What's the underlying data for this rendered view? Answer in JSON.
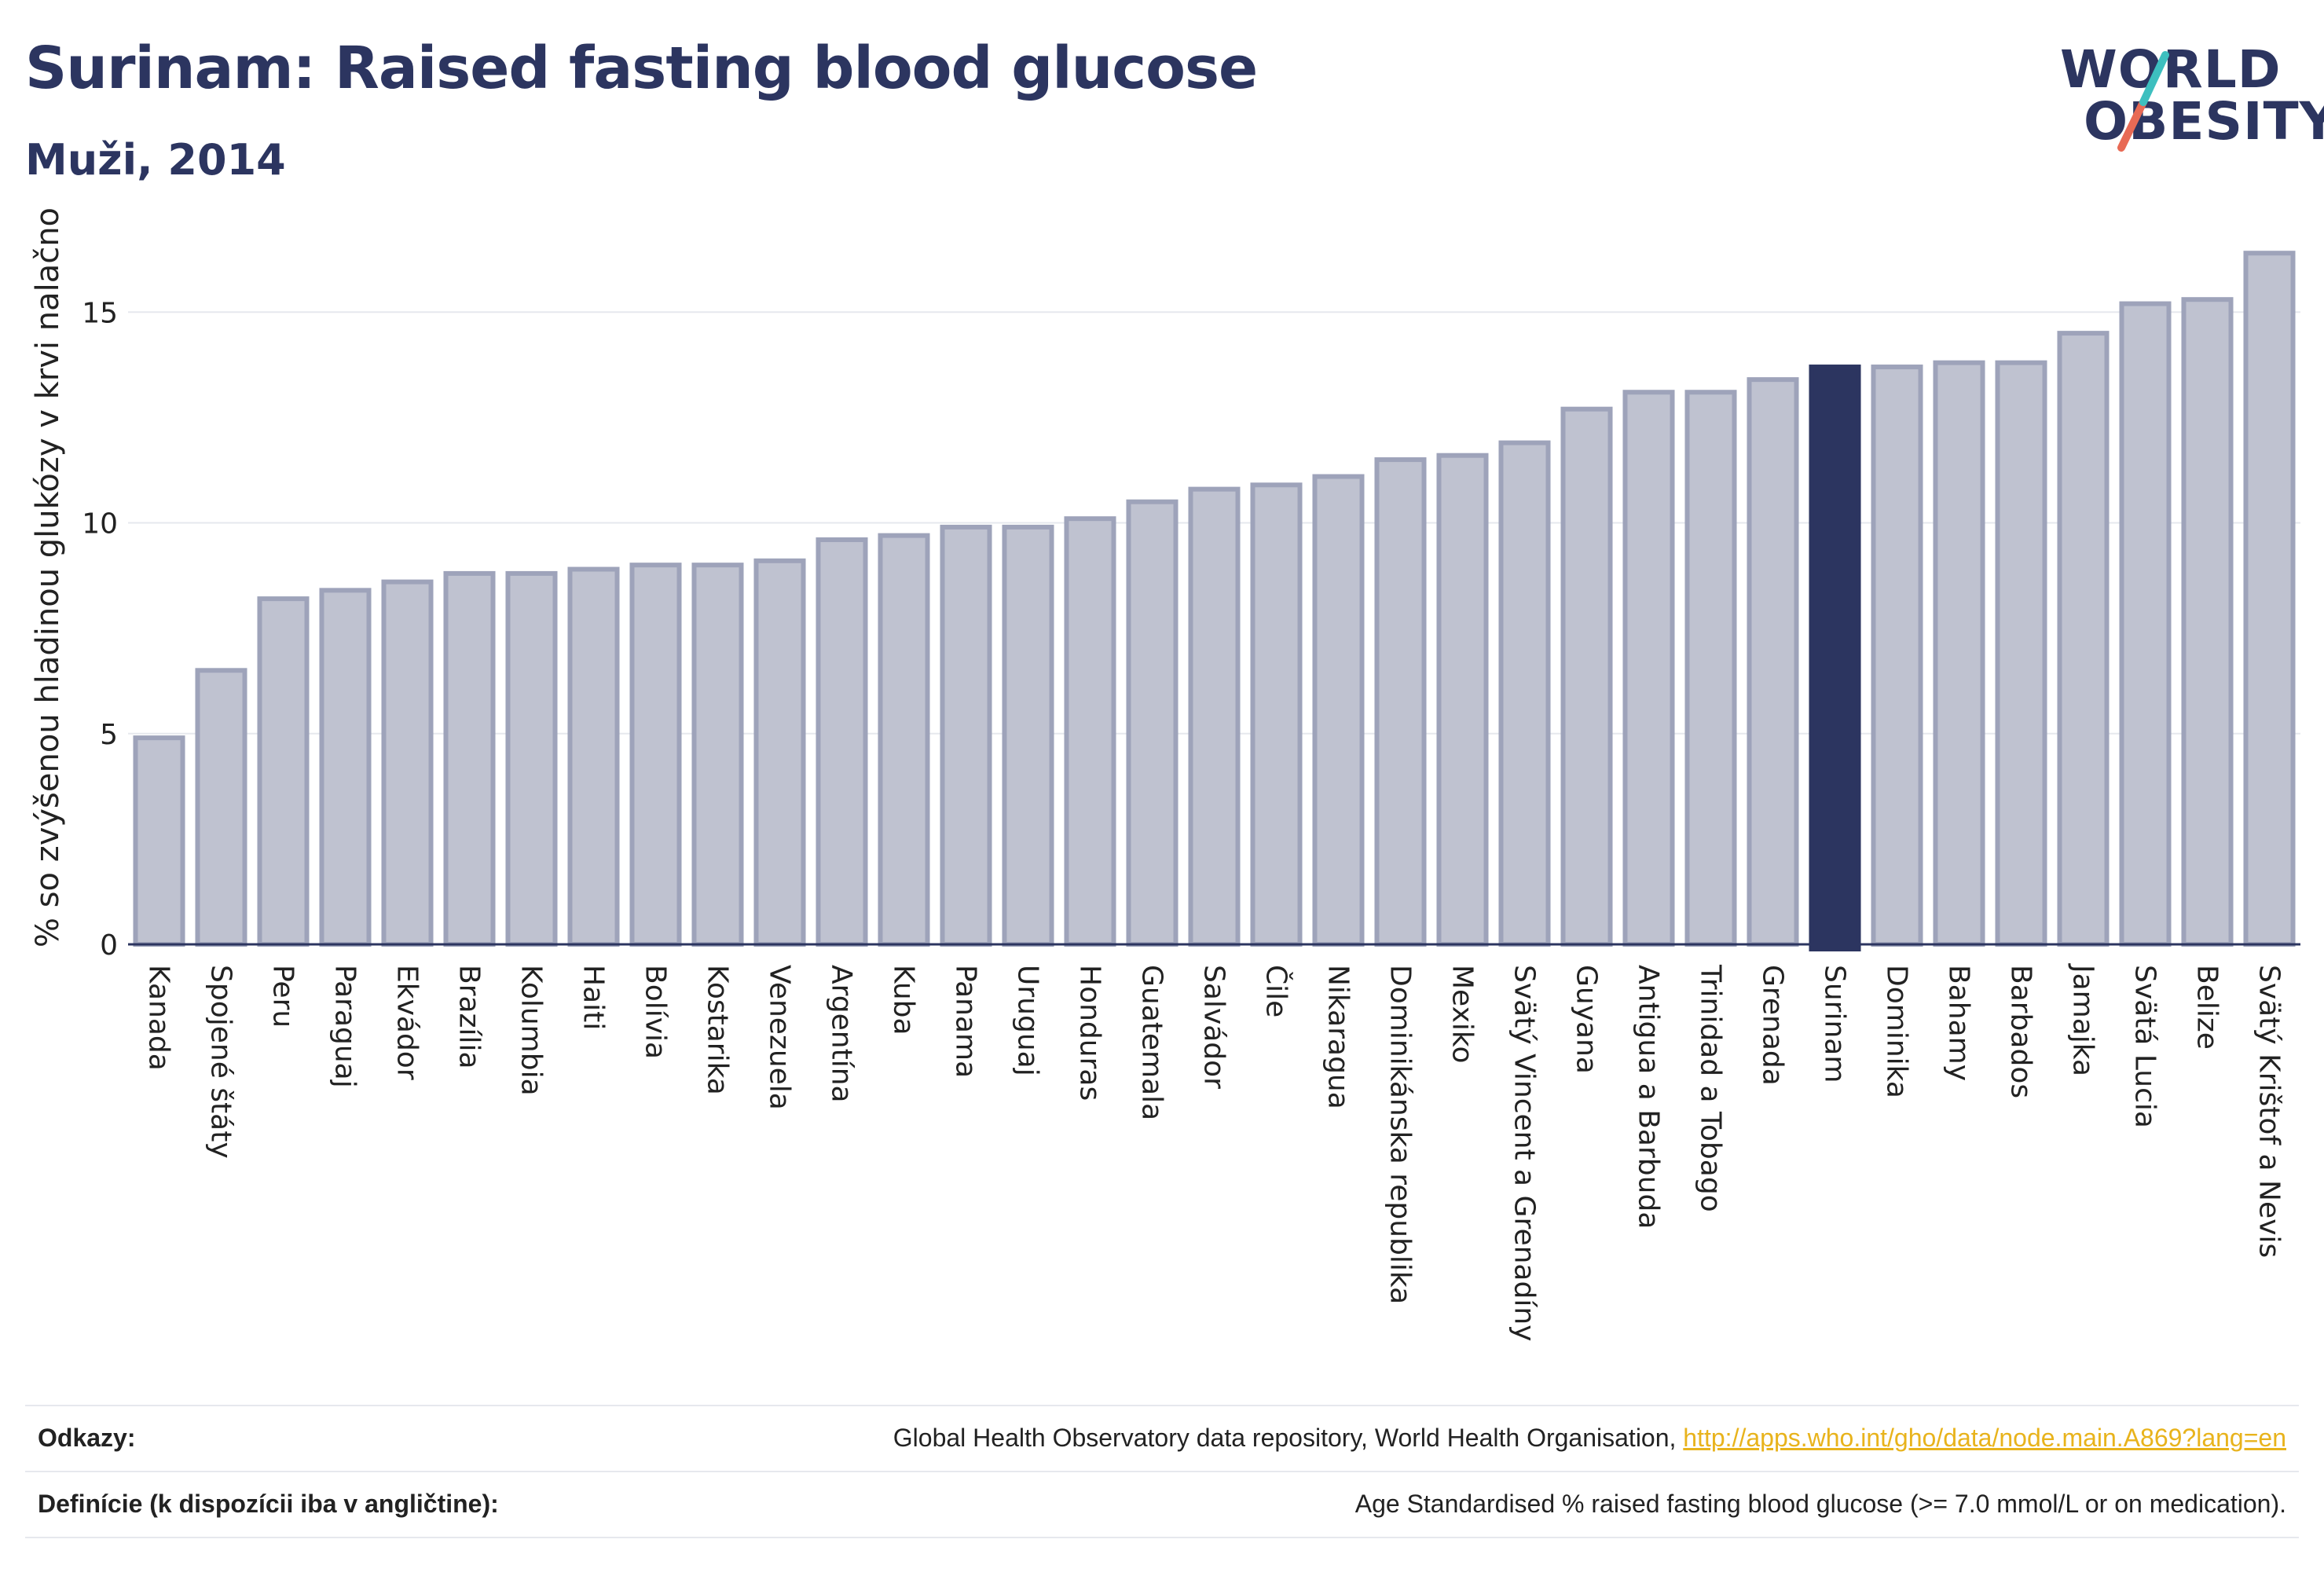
{
  "header": {
    "title": "Surinam: Raised fasting blood glucose",
    "subtitle": "Muži, 2014"
  },
  "logo": {
    "line1": "WORLD",
    "line2": "OBESITY"
  },
  "colors": {
    "bar": "#bfc2d0",
    "bar_border": "#9ea3ba",
    "highlight": "#2c3560",
    "accent_teal": "#3dbfbf",
    "accent_red": "#e86a55",
    "link": "#e8b31c"
  },
  "chart_data": {
    "type": "bar",
    "ylabel": "% so zvýšenou hladinou glukózy v krvi nalačno",
    "ylim": [
      0,
      17
    ],
    "yticks": [
      0,
      5,
      10,
      15
    ],
    "grid": true,
    "highlight": "Surinam",
    "categories": [
      "Kanada",
      "Spojené štáty",
      "Peru",
      "Paraguaj",
      "Ekvádor",
      "Brazília",
      "Kolumbia",
      "Haiti",
      "Bolívia",
      "Kostarika",
      "Venezuela",
      "Argentína",
      "Kuba",
      "Panama",
      "Uruguaj",
      "Honduras",
      "Guatemala",
      "Salvádor",
      "Čile",
      "Nikaragua",
      "Dominikánska republika",
      "Mexiko",
      "Svätý Vincent a Grenadíny",
      "Guyana",
      "Antigua a Barbuda",
      "Trinidad a Tobago",
      "Grenada",
      "Surinam",
      "Dominika",
      "Bahamy",
      "Barbados",
      "Jamajka",
      "Svätá Lucia",
      "Belize",
      "Svätý Krištof a Nevis"
    ],
    "values": [
      4.9,
      6.5,
      8.2,
      8.4,
      8.6,
      8.8,
      8.8,
      8.9,
      9.0,
      9.0,
      9.1,
      9.6,
      9.7,
      9.9,
      9.9,
      10.1,
      10.5,
      10.8,
      10.9,
      11.1,
      11.5,
      11.6,
      11.9,
      12.7,
      13.1,
      13.1,
      13.4,
      13.7,
      13.7,
      13.8,
      13.8,
      14.5,
      15.2,
      15.3,
      16.4
    ]
  },
  "footer": {
    "sources_label": "Odkazy:",
    "sources_text": "Global Health Observatory data repository, World Health Organisation, ",
    "sources_link": "http://apps.who.int/gho/data/node.main.A869?lang=en",
    "definition_label": "Definície (k dispozícii iba v angličtine):",
    "definition_text": "Age Standardised % raised fasting blood glucose (>= 7.0 mmol/L or on medication)."
  }
}
